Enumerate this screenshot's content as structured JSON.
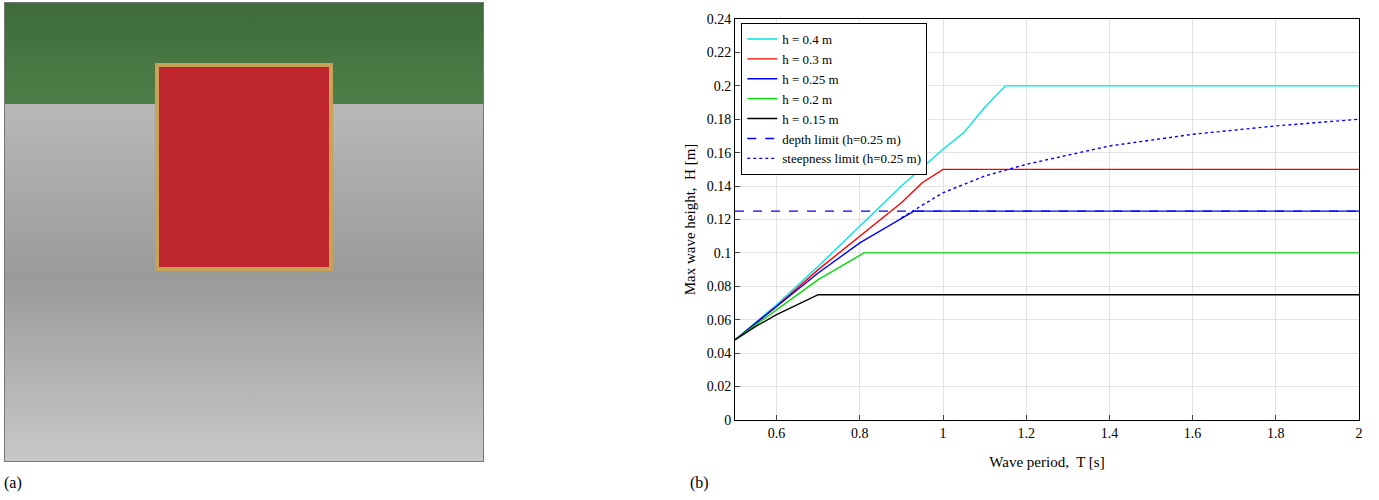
{
  "panel_labels": [
    "(a)",
    "(b)"
  ],
  "chart_data": {
    "type": "line",
    "x_label": "Wave period,  T [s]",
    "y_label": "Max wave height,  H [m]",
    "xlim": [
      0.5,
      2
    ],
    "xticks": [
      0.6,
      0.8,
      1,
      1.2,
      1.4,
      1.6,
      1.8,
      2
    ],
    "ylim": [
      0,
      0.24
    ],
    "yticks": [
      0,
      0.02,
      0.04,
      0.06,
      0.08,
      0.1,
      0.12,
      0.14,
      0.16,
      0.18,
      0.2,
      0.22,
      0.24
    ],
    "grid": true,
    "legend": "upper left",
    "series": [
      {
        "name": "h = 0.4 m",
        "color": "#00e5e5",
        "line_style": "solid",
        "x": [
          0.5,
          0.6,
          0.7,
          0.8,
          0.9,
          1.0,
          1.05,
          1.1,
          1.15,
          2
        ],
        "values": [
          0.048,
          0.069,
          0.092,
          0.116,
          0.14,
          0.162,
          0.172,
          0.187,
          0.2,
          0.2
        ]
      },
      {
        "name": "h = 0.3 m",
        "color": "#ff0000",
        "line_style": "solid",
        "x": [
          0.5,
          0.6,
          0.7,
          0.8,
          0.9,
          0.95,
          1.0,
          2
        ],
        "values": [
          0.048,
          0.068,
          0.09,
          0.11,
          0.13,
          0.142,
          0.15,
          0.15
        ]
      },
      {
        "name": "h = 0.25 m",
        "color": "#0000ff",
        "line_style": "solid",
        "x": [
          0.5,
          0.6,
          0.7,
          0.8,
          0.9,
          0.93,
          2
        ],
        "values": [
          0.048,
          0.068,
          0.088,
          0.106,
          0.121,
          0.125,
          0.125
        ]
      },
      {
        "name": "h = 0.2 m",
        "color": "#00dd00",
        "line_style": "solid",
        "x": [
          0.5,
          0.6,
          0.7,
          0.81,
          2
        ],
        "values": [
          0.048,
          0.066,
          0.084,
          0.1,
          0.1
        ]
      },
      {
        "name": "h = 0.15 m",
        "color": "#000000",
        "line_style": "solid",
        "x": [
          0.5,
          0.55,
          0.6,
          0.65,
          0.7,
          2
        ],
        "values": [
          0.048,
          0.056,
          0.063,
          0.069,
          0.075,
          0.075
        ]
      },
      {
        "name": "depth limit (h=0.25 m)",
        "color": "#0000ff",
        "line_style": "dashed",
        "x": [
          0.5,
          2
        ],
        "values": [
          0.125,
          0.125
        ]
      },
      {
        "name": "steepness limit (h=0.25 m)",
        "color": "#0000ff",
        "line_style": "dotted",
        "x": [
          0.9,
          1.0,
          1.1,
          1.2,
          1.4,
          1.6,
          1.8,
          2
        ],
        "values": [
          0.121,
          0.136,
          0.146,
          0.153,
          0.164,
          0.171,
          0.176,
          0.18
        ]
      }
    ]
  }
}
